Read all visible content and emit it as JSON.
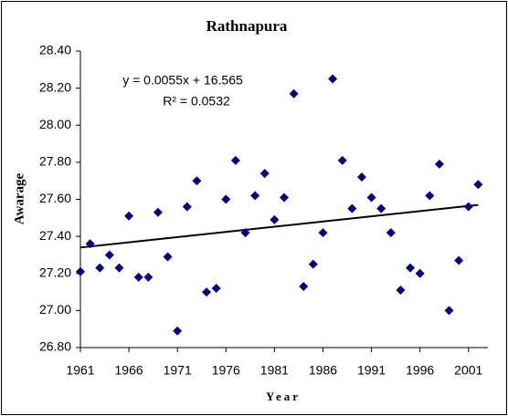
{
  "chart_data": {
    "type": "scatter",
    "title": "Rathnapura",
    "x_label": "Year",
    "y_label": "Awarage",
    "annotations": [
      "y = 0.0055x + 16.565",
      "R² = 0.0532"
    ],
    "x": [
      1961,
      1962,
      1963,
      1964,
      1965,
      1966,
      1967,
      1968,
      1969,
      1970,
      1971,
      1972,
      1973,
      1974,
      1975,
      1976,
      1977,
      1978,
      1979,
      1980,
      1981,
      1982,
      1983,
      1984,
      1985,
      1986,
      1987,
      1988,
      1989,
      1990,
      1991,
      1992,
      1993,
      1994,
      1995,
      1996,
      1997,
      1998,
      1999,
      2000,
      2001,
      2002
    ],
    "series": [
      {
        "name": "Awarage",
        "color": "#000080",
        "values": [
          27.21,
          27.36,
          27.23,
          27.3,
          27.23,
          27.51,
          27.18,
          27.18,
          27.53,
          27.29,
          26.89,
          27.56,
          27.7,
          27.1,
          27.12,
          27.6,
          27.81,
          27.42,
          27.62,
          27.74,
          27.49,
          27.61,
          28.17,
          27.13,
          27.25,
          27.42,
          28.25,
          27.81,
          27.55,
          27.72,
          27.61,
          27.55,
          27.42,
          27.11,
          27.23,
          27.2,
          27.62,
          27.79,
          27.0,
          27.27,
          27.56,
          27.68
        ]
      }
    ],
    "trendline": {
      "x": [
        1961,
        2002
      ],
      "y": [
        27.34,
        27.57
      ],
      "color": "#000000"
    },
    "xlim": [
      1961,
      2003
    ],
    "xticks": [
      1961,
      1966,
      1971,
      1976,
      1981,
      1986,
      1991,
      1996,
      2001
    ],
    "ylim": [
      26.8,
      28.4
    ],
    "yticks": [
      {
        "value": 26.8,
        "label": "26.80"
      },
      {
        "value": 27.0,
        "label": "27.00"
      },
      {
        "value": 27.2,
        "label": "27.20"
      },
      {
        "value": 27.4,
        "label": "27.40"
      },
      {
        "value": 27.6,
        "label": "27.60"
      },
      {
        "value": 27.8,
        "label": "27.80"
      },
      {
        "value": 28.0,
        "label": "28.00"
      },
      {
        "value": 28.2,
        "label": "28.20"
      },
      {
        "value": 28.4,
        "label": "28.40"
      }
    ]
  }
}
